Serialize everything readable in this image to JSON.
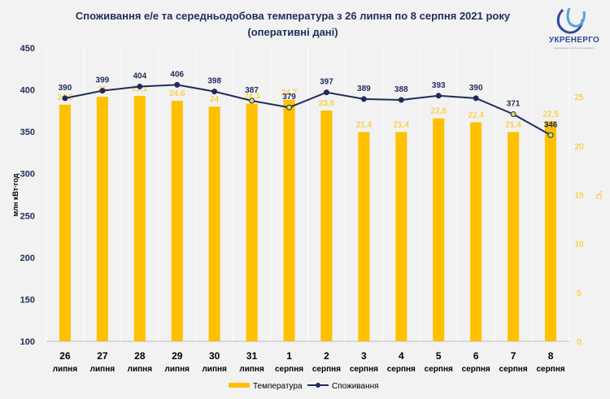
{
  "title_line1": "Споживання е/е та середньодобова температура з 26 липня по 8 серпня 2021 року",
  "title_line2": "(оперативні дані)",
  "logo": {
    "name": "УКРЕНЕРГО",
    "subtitle": "Національна енергетична компанія"
  },
  "colors": {
    "bars": "#ffc000",
    "line": "#1f2d5c",
    "axis_text": "#1f2d5c",
    "data_label_bars": "#ffc000",
    "highlight_marker": "#d4e157"
  },
  "chart_data": {
    "type": "bar+line",
    "categories": [
      [
        "26",
        "липня"
      ],
      [
        "27",
        "липня"
      ],
      [
        "28",
        "липня"
      ],
      [
        "29",
        "липня"
      ],
      [
        "30",
        "липня"
      ],
      [
        "31",
        "липня"
      ],
      [
        "1",
        "серпня"
      ],
      [
        "2",
        "серпня"
      ],
      [
        "3",
        "серпня"
      ],
      [
        "4",
        "серпня"
      ],
      [
        "5",
        "серпня"
      ],
      [
        "6",
        "серпня"
      ],
      [
        "7",
        "серпня"
      ],
      [
        "8",
        "серпня"
      ]
    ],
    "series": [
      {
        "name": "Температура",
        "type": "bar",
        "axis": "right",
        "values": [
          24.2,
          25,
          25.1,
          24.6,
          24,
          24.3,
          24.7,
          23.6,
          21.4,
          21.4,
          22.8,
          22.4,
          21.4,
          22.5
        ],
        "labels": [
          "24,2",
          "25",
          "25,1",
          "24,6",
          "24",
          "24,3",
          "24,7",
          "23,6",
          "21,4",
          "21,4",
          "22,8",
          "22,4",
          "21,4",
          "22,5"
        ]
      },
      {
        "name": "Споживання",
        "type": "line",
        "axis": "left",
        "values": [
          390,
          399,
          404,
          406,
          398,
          387,
          379,
          397,
          389,
          388,
          393,
          390,
          371,
          346
        ],
        "labels": [
          "390",
          "399",
          "404",
          "406",
          "398",
          "387",
          "379",
          "397",
          "389",
          "388",
          "393",
          "390",
          "371",
          "346"
        ],
        "highlighted_points": [
          5,
          6,
          12,
          13
        ]
      }
    ],
    "ylabel_left": "млн кВт∙год",
    "ylabel_right": "°С",
    "ylim_left": [
      100,
      450
    ],
    "ylim_right": [
      0,
      30
    ],
    "yticks_left": [
      "100",
      "150",
      "200",
      "250",
      "300",
      "350",
      "400",
      "450"
    ],
    "yticks_right": [
      "0",
      "5",
      "10",
      "15",
      "20",
      "25"
    ],
    "legend_position": "bottom",
    "grid": "vertical"
  }
}
